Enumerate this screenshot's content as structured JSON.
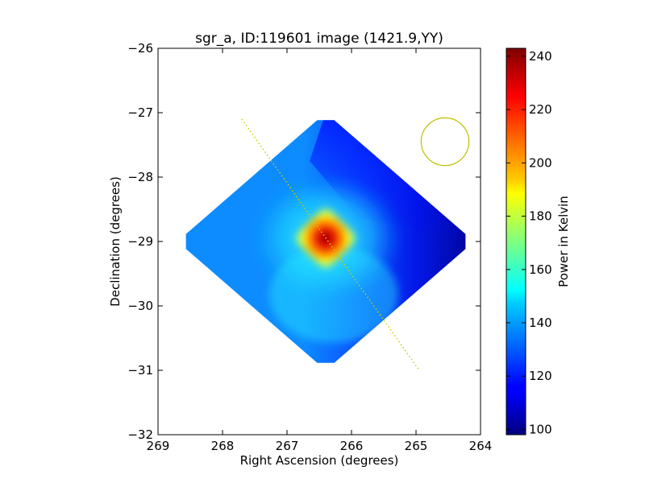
{
  "chart_data": {
    "type": "heatmap",
    "title": "sgr_a, ID:119601 image (1421.9,YY)",
    "xlabel": "Right Ascension (degrees)",
    "ylabel": "Declination (degrees)",
    "xlim": [
      269,
      264
    ],
    "ylim": [
      -32,
      -26
    ],
    "xticks": [
      269,
      268,
      267,
      266,
      265,
      264
    ],
    "yticks": [
      -26,
      -27,
      -28,
      -29,
      -30,
      -31,
      -32
    ],
    "xtick_labels": [
      "269",
      "268",
      "267",
      "266",
      "265",
      "264"
    ],
    "ytick_labels": [
      "−26",
      "−27",
      "−28",
      "−29",
      "−30",
      "−31",
      "−32"
    ],
    "grid": false,
    "colormap": "jet",
    "colorbar": {
      "label": "Power in Kelvin",
      "range": [
        98,
        243
      ],
      "ticks": [
        100,
        120,
        140,
        160,
        180,
        200,
        220,
        240
      ],
      "tick_labels": [
        "100",
        "120",
        "140",
        "160",
        "180",
        "200",
        "220",
        "240"
      ]
    },
    "image_region": {
      "shape": "diamond",
      "center": [
        266.4,
        -29.0
      ],
      "vertices": [
        [
          266.4,
          -27.0
        ],
        [
          264.1,
          -29.0
        ],
        [
          266.4,
          -31.0
        ],
        [
          268.7,
          -29.0
        ]
      ]
    },
    "peak": {
      "ra": 266.4,
      "dec": -28.95,
      "value": 243
    },
    "background_value": 130,
    "edge_value_east": 100,
    "galactic_plane_line": {
      "start": [
        267.7,
        -27.1
      ],
      "end": [
        264.95,
        -31.0
      ],
      "color": "#cccc00"
    },
    "beam_circle": {
      "center": [
        264.55,
        -27.45
      ],
      "radius_deg": 0.37,
      "color": "#bfbf00"
    }
  }
}
